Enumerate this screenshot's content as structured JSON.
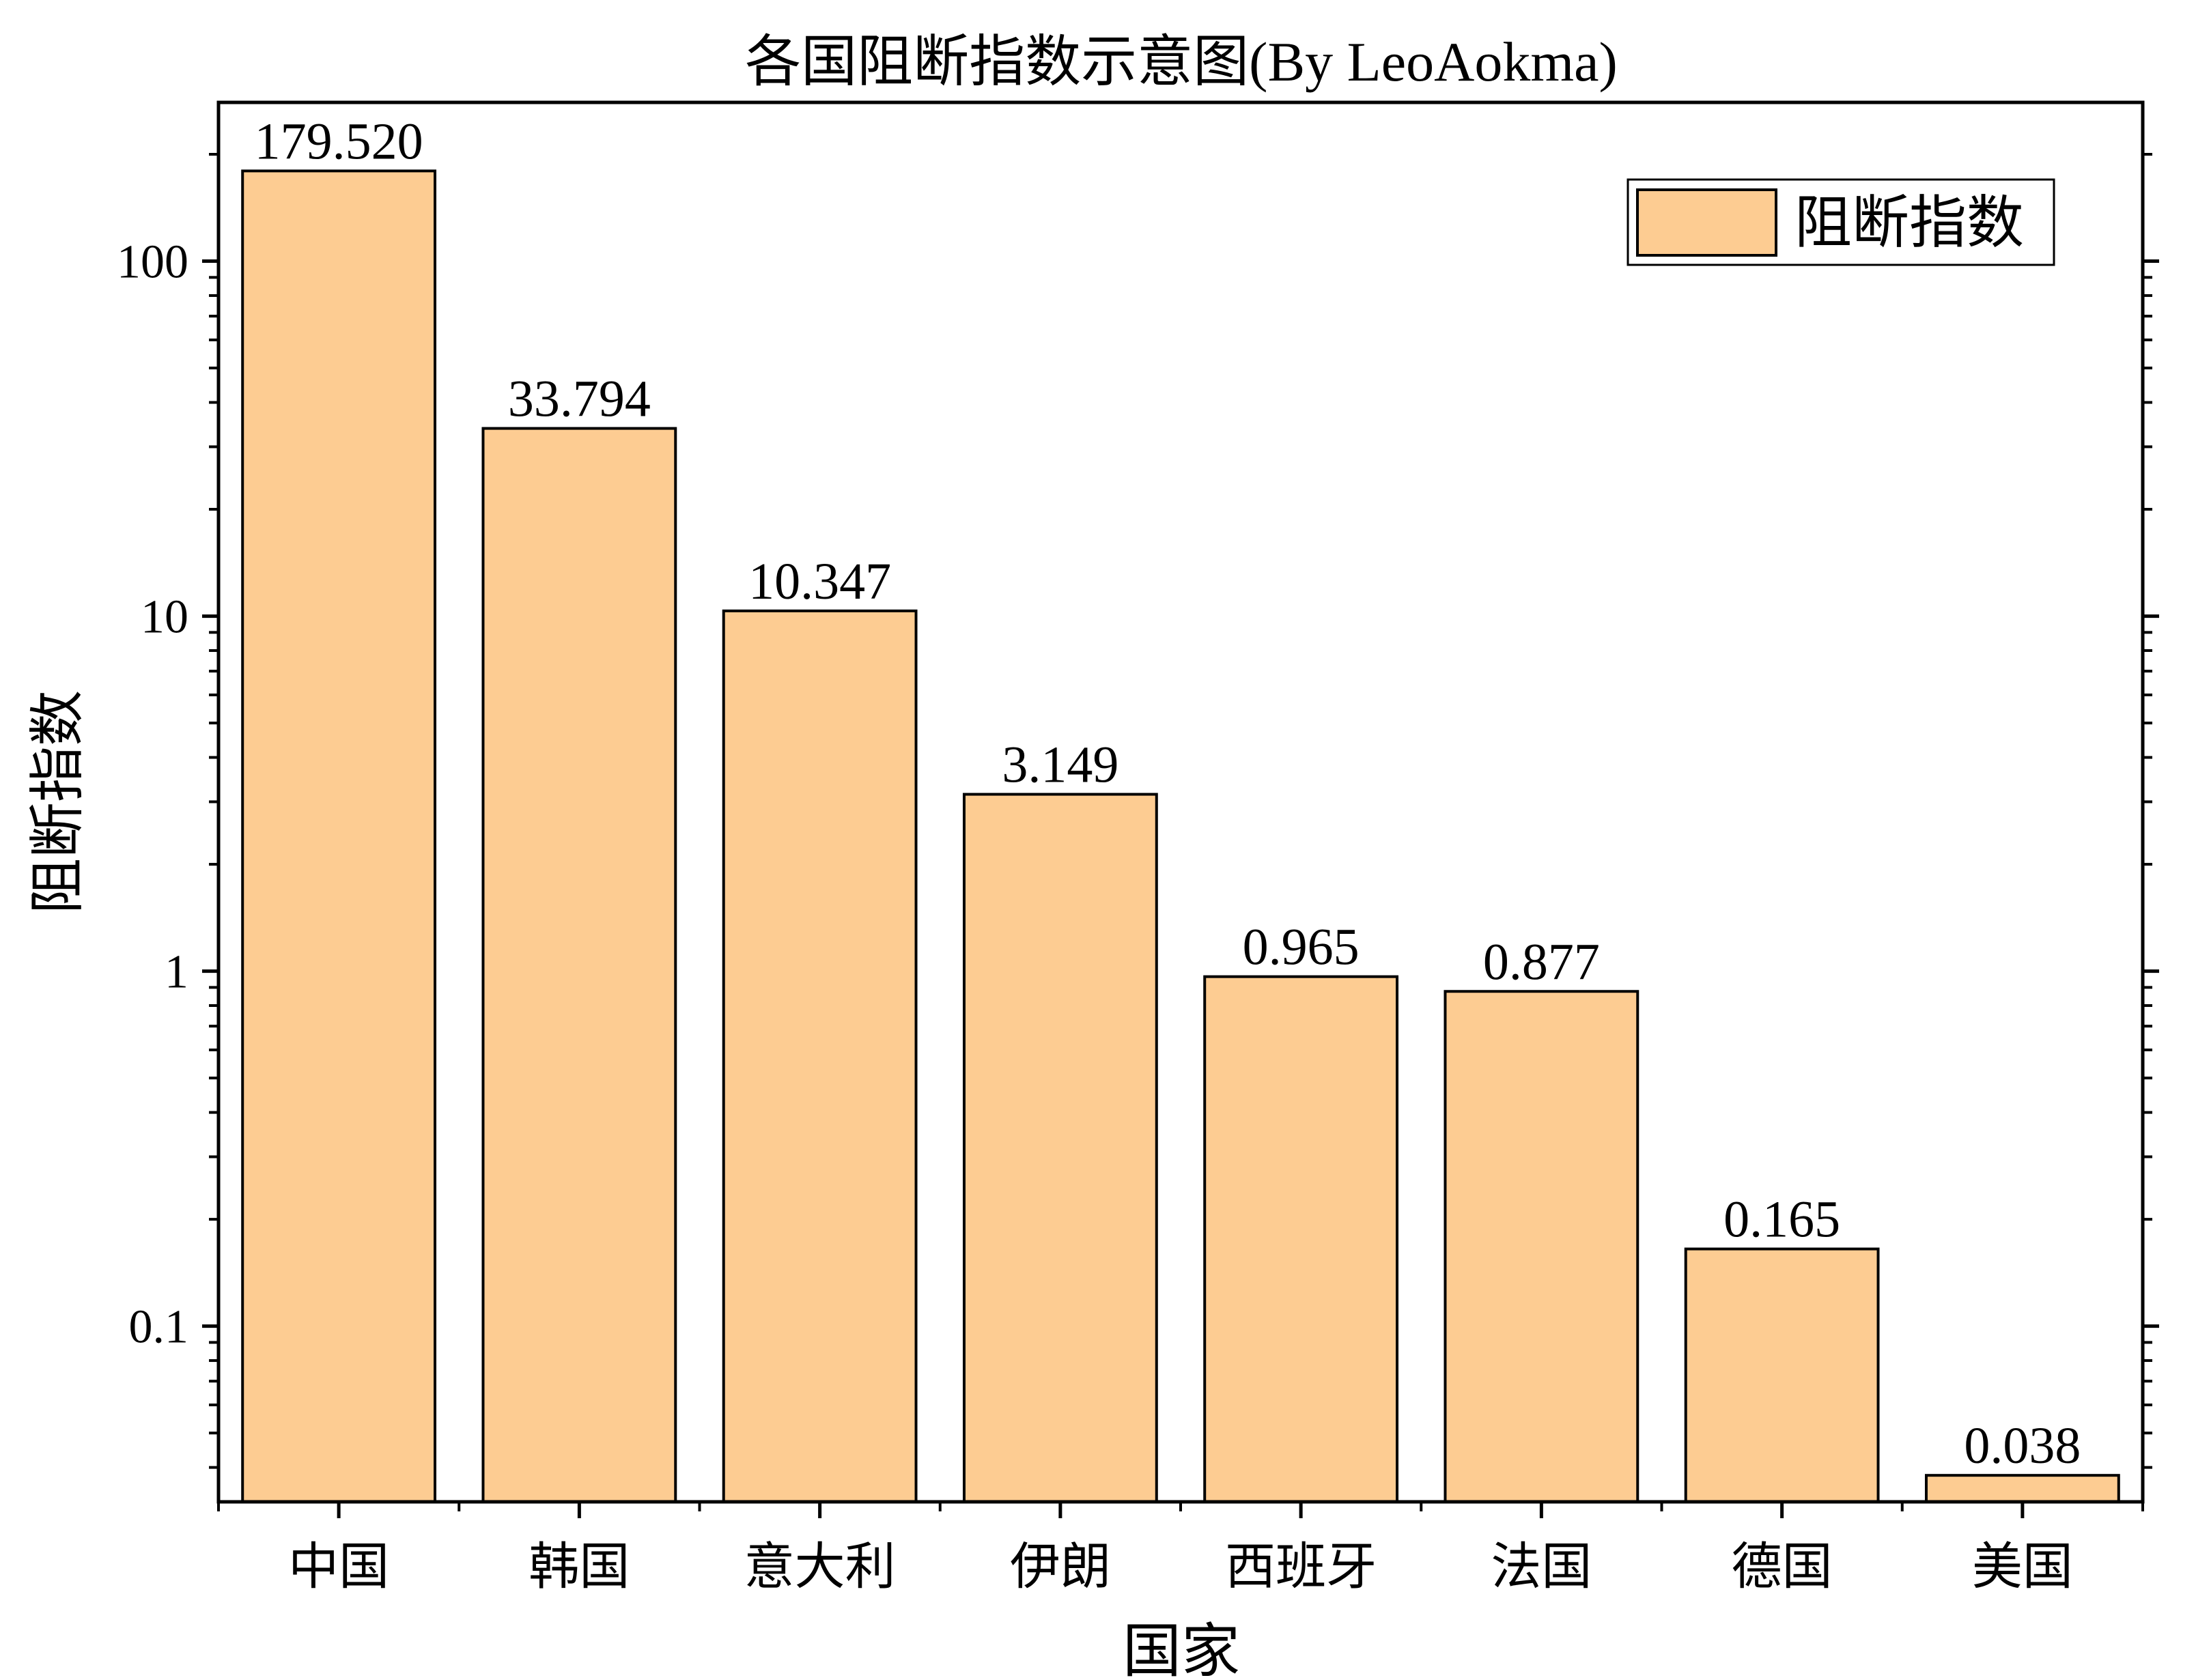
{
  "chart_data": {
    "type": "bar",
    "title": "各国阻断指数示意图(By LeoAokma)",
    "xlabel": "国家",
    "ylabel": "阻断指数",
    "yscale": "log",
    "ylim": [
      0.032,
      280
    ],
    "yticks": [
      {
        "value": 0.1,
        "label": "0.1"
      },
      {
        "value": 1,
        "label": "1"
      },
      {
        "value": 10,
        "label": "10"
      },
      {
        "value": 100,
        "label": "100"
      }
    ],
    "categories": [
      "中国",
      "韩国",
      "意大利",
      "伊朗",
      "西班牙",
      "法国",
      "德国",
      "美国"
    ],
    "series": [
      {
        "name": "阻断指数",
        "values": [
          179.52,
          33.794,
          10.347,
          3.149,
          0.965,
          0.877,
          0.165,
          0.038
        ],
        "labels": [
          "179.520",
          "33.794",
          "10.347",
          "3.149",
          "0.965",
          "0.877",
          "0.165",
          "0.038"
        ]
      }
    ],
    "legend": {
      "position": "top-right"
    },
    "grid": false,
    "colors": {
      "bar_fill": "#FDCC92",
      "bar_stroke": "#000000"
    }
  }
}
